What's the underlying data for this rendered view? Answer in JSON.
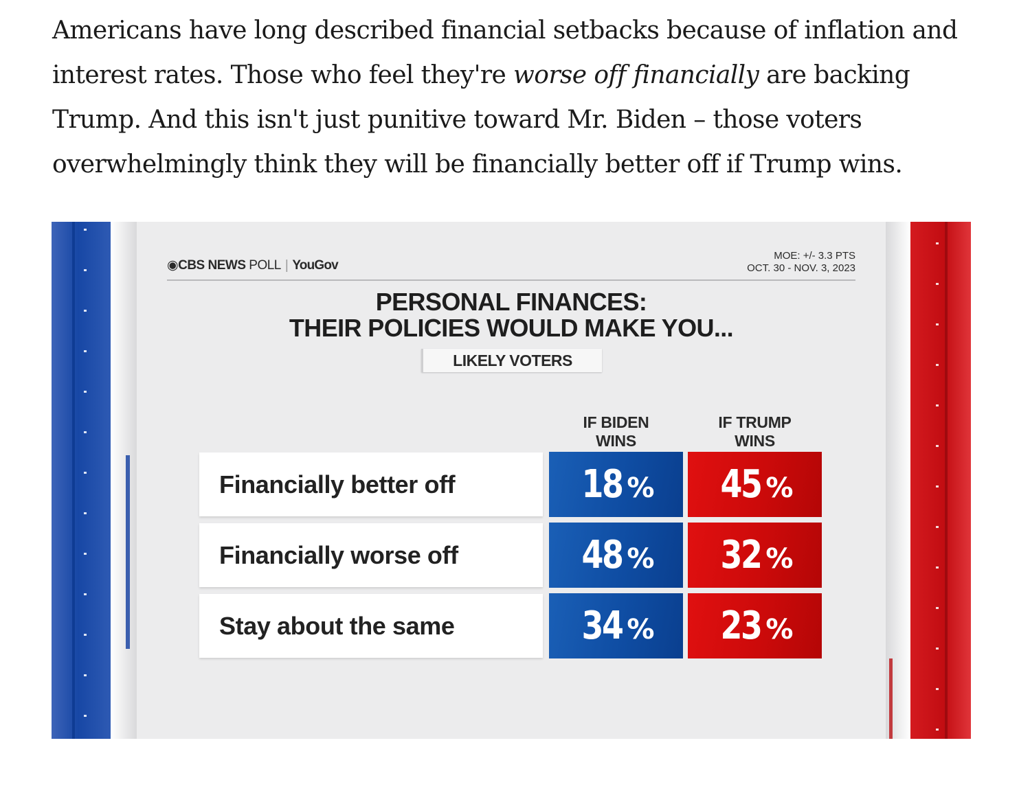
{
  "article": {
    "part1": "Americans have long described financial setbacks because of inflation and interest rates. Those who feel they're ",
    "emphasis": "worse off financially",
    "part2": " are backing Trump. And this isn't just punitive toward Mr. Biden – those voters overwhelmingly think they will be financially better off if Trump wins."
  },
  "graphic": {
    "brand_cbs": "CBS NEWS",
    "brand_poll": "POLL",
    "brand_separator": "|",
    "brand_yougov": "YouGov",
    "moe": "MOE: +/- 3.3 PTS",
    "dates": "OCT. 30 - NOV. 3, 2023",
    "title_line1": "PERSONAL FINANCES:",
    "title_line2": "THEIR POLICIES WOULD MAKE YOU...",
    "subtitle": "LIKELY VOTERS",
    "colors": {
      "biden_blue": "#1456ad",
      "trump_red": "#d50b0b",
      "background": "#ececed"
    }
  },
  "chart_data": {
    "type": "table",
    "title": "PERSONAL FINANCES: THEIR POLICIES WOULD MAKE YOU...",
    "subtitle": "LIKELY VOTERS",
    "columns": [
      {
        "line1": "IF BIDEN",
        "line2": "WINS"
      },
      {
        "line1": "IF TRUMP",
        "line2": "WINS"
      }
    ],
    "categories": [
      "Financially better off",
      "Financially worse off",
      "Stay about the same"
    ],
    "series": [
      {
        "values": [
          18,
          48,
          34
        ]
      },
      {
        "values": [
          45,
          32,
          23
        ]
      }
    ],
    "unit": "%"
  }
}
